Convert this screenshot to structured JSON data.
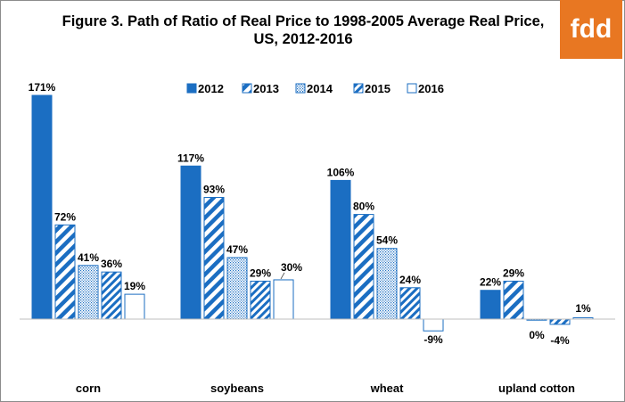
{
  "title_line1": "Figure 3. Path of Ratio of Real Price to 1998-2005 Average Real Price,",
  "title_line2": "US, 2012-2016",
  "logo_text": "fdd",
  "colors": {
    "accent": "#1b6ec2",
    "logo": "#e87722"
  },
  "chart_data": {
    "type": "bar",
    "title": "Figure 3. Path of Ratio of Real Price to 1998-2005 Average Real Price, US, 2012-2016",
    "categories": [
      "corn",
      "soybeans",
      "wheat",
      "upland cotton"
    ],
    "series": [
      {
        "name": "2012",
        "pattern": "solid",
        "values": [
          171,
          117,
          106,
          22
        ]
      },
      {
        "name": "2013",
        "pattern": "wide-diagonal",
        "values": [
          72,
          93,
          80,
          29
        ]
      },
      {
        "name": "2014",
        "pattern": "dotted",
        "values": [
          41,
          47,
          54,
          0
        ]
      },
      {
        "name": "2015",
        "pattern": "diagonal",
        "values": [
          36,
          29,
          24,
          -4
        ]
      },
      {
        "name": "2016",
        "pattern": "hollow",
        "values": [
          19,
          30,
          -9,
          1
        ]
      }
    ],
    "data_labels": [
      [
        "171%",
        "72%",
        "41%",
        "36%",
        "19%"
      ],
      [
        "117%",
        "93%",
        "47%",
        "29%",
        "30%"
      ],
      [
        "106%",
        "80%",
        "54%",
        "24%",
        "-9%"
      ],
      [
        "22%",
        "29%",
        "0%",
        "-4%",
        "1%"
      ]
    ],
    "unit": "%",
    "ylim": [
      -12,
      180
    ],
    "legend": "top-center",
    "grid": false
  }
}
